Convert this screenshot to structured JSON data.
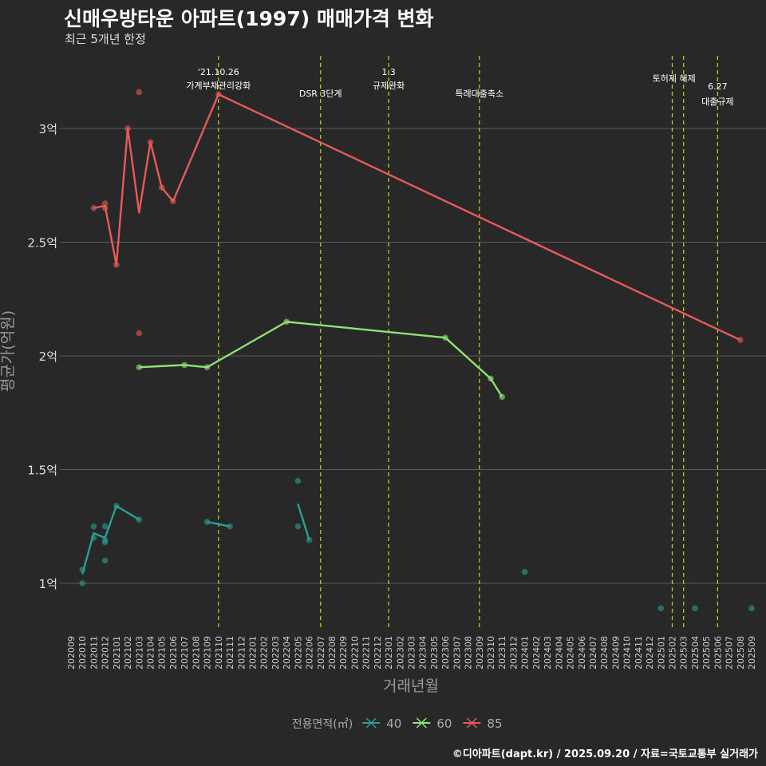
{
  "title": "신매우방타운 아파트(1997) 매매가격 변화",
  "subtitle": "최근 5개년 한정",
  "footer": "©디아파트(dapt.kr) / 2025.09.20 / 자료=국토교통부 실거래가",
  "chart_data": {
    "type": "line",
    "xlabel": "거래년월",
    "ylabel": "평균가(억원)",
    "ylim": [
      0.79,
      3.33
    ],
    "y_ticks": [
      {
        "v": 1,
        "label": "1억"
      },
      {
        "v": 1.5,
        "label": "1.5억"
      },
      {
        "v": 2,
        "label": "2억"
      },
      {
        "v": 2.5,
        "label": "2.5억"
      },
      {
        "v": 3,
        "label": "3억"
      }
    ],
    "grid": "horizontal-major",
    "x_start": "202009",
    "x_end": "202509",
    "legend": {
      "title": "전용면적(㎡)",
      "placement": "bottom"
    },
    "events": [
      {
        "month": "202110",
        "lines": [
          "'21.10.26",
          "가계부채관리강화"
        ],
        "row": 0
      },
      {
        "month": "202207",
        "lines": [
          "DSR 3단계"
        ],
        "row": 1
      },
      {
        "month": "202301",
        "lines": [
          "1.3",
          "규제완화"
        ],
        "row": 0
      },
      {
        "month": "202309",
        "lines": [
          "특례대출축소"
        ],
        "row": 1
      },
      {
        "month": "202502",
        "lines": [],
        "row": 0
      },
      {
        "month": "202503",
        "lines": [
          "토허제 해제"
        ],
        "row": 2
      },
      {
        "month": "202506",
        "lines": [
          "6.27",
          "대출규제"
        ],
        "row": 3
      }
    ],
    "series": [
      {
        "name": "40",
        "color": "#27a095",
        "line_segments": [
          [
            [
              "202010",
              1.04
            ],
            [
              "202011",
              1.22
            ],
            [
              "202012",
              1.2
            ],
            [
              "202101",
              1.34
            ],
            [
              "202103",
              1.28
            ]
          ],
          [
            [
              "202109",
              1.27
            ],
            [
              "202111",
              1.25
            ]
          ],
          [
            [
              "202205",
              1.35
            ],
            [
              "202206",
              1.19
            ]
          ]
        ],
        "points": [
          [
            "202010",
            1.0
          ],
          [
            "202010",
            1.06
          ],
          [
            "202011",
            1.25
          ],
          [
            "202011",
            1.2
          ],
          [
            "202012",
            1.25
          ],
          [
            "202012",
            1.19
          ],
          [
            "202012",
            1.18
          ],
          [
            "202012",
            1.1
          ],
          [
            "202101",
            1.34
          ],
          [
            "202103",
            1.28
          ],
          [
            "202109",
            1.27
          ],
          [
            "202111",
            1.25
          ],
          [
            "202205",
            1.45
          ],
          [
            "202205",
            1.25
          ],
          [
            "202206",
            1.19
          ],
          [
            "202401",
            1.05
          ],
          [
            "202501",
            0.89
          ],
          [
            "202504",
            0.89
          ],
          [
            "202509",
            0.89
          ]
        ]
      },
      {
        "name": "60",
        "color": "#8fe276",
        "line_segments": [
          [
            [
              "202103",
              1.95
            ],
            [
              "202107",
              1.96
            ],
            [
              "202109",
              1.95
            ],
            [
              "202204",
              2.15
            ],
            [
              "202306",
              2.08
            ],
            [
              "202310",
              1.9
            ],
            [
              "202311",
              1.82
            ]
          ]
        ],
        "points": [
          [
            "202103",
            1.95
          ],
          [
            "202107",
            1.96
          ],
          [
            "202109",
            1.95
          ],
          [
            "202204",
            2.15
          ],
          [
            "202306",
            2.08
          ],
          [
            "202310",
            1.9
          ],
          [
            "202311",
            1.82
          ]
        ]
      },
      {
        "name": "85",
        "color": "#e85a5a",
        "line_segments": [
          [
            [
              "202011",
              2.65
            ],
            [
              "202012",
              2.66
            ],
            [
              "202101",
              2.4
            ],
            [
              "202102",
              3.0
            ],
            [
              "202103",
              2.63
            ],
            [
              "202104",
              2.94
            ],
            [
              "202105",
              2.74
            ],
            [
              "202106",
              2.68
            ],
            [
              "202110",
              3.15
            ],
            [
              "202508",
              2.07
            ]
          ]
        ],
        "points": [
          [
            "202011",
            2.65
          ],
          [
            "202012",
            2.67
          ],
          [
            "202012",
            2.65
          ],
          [
            "202101",
            2.4
          ],
          [
            "202102",
            3.0
          ],
          [
            "202103",
            3.16
          ],
          [
            "202103",
            2.1
          ],
          [
            "202104",
            2.94
          ],
          [
            "202105",
            2.74
          ],
          [
            "202106",
            2.68
          ],
          [
            "202110",
            3.15
          ],
          [
            "202508",
            2.07
          ]
        ]
      }
    ]
  }
}
